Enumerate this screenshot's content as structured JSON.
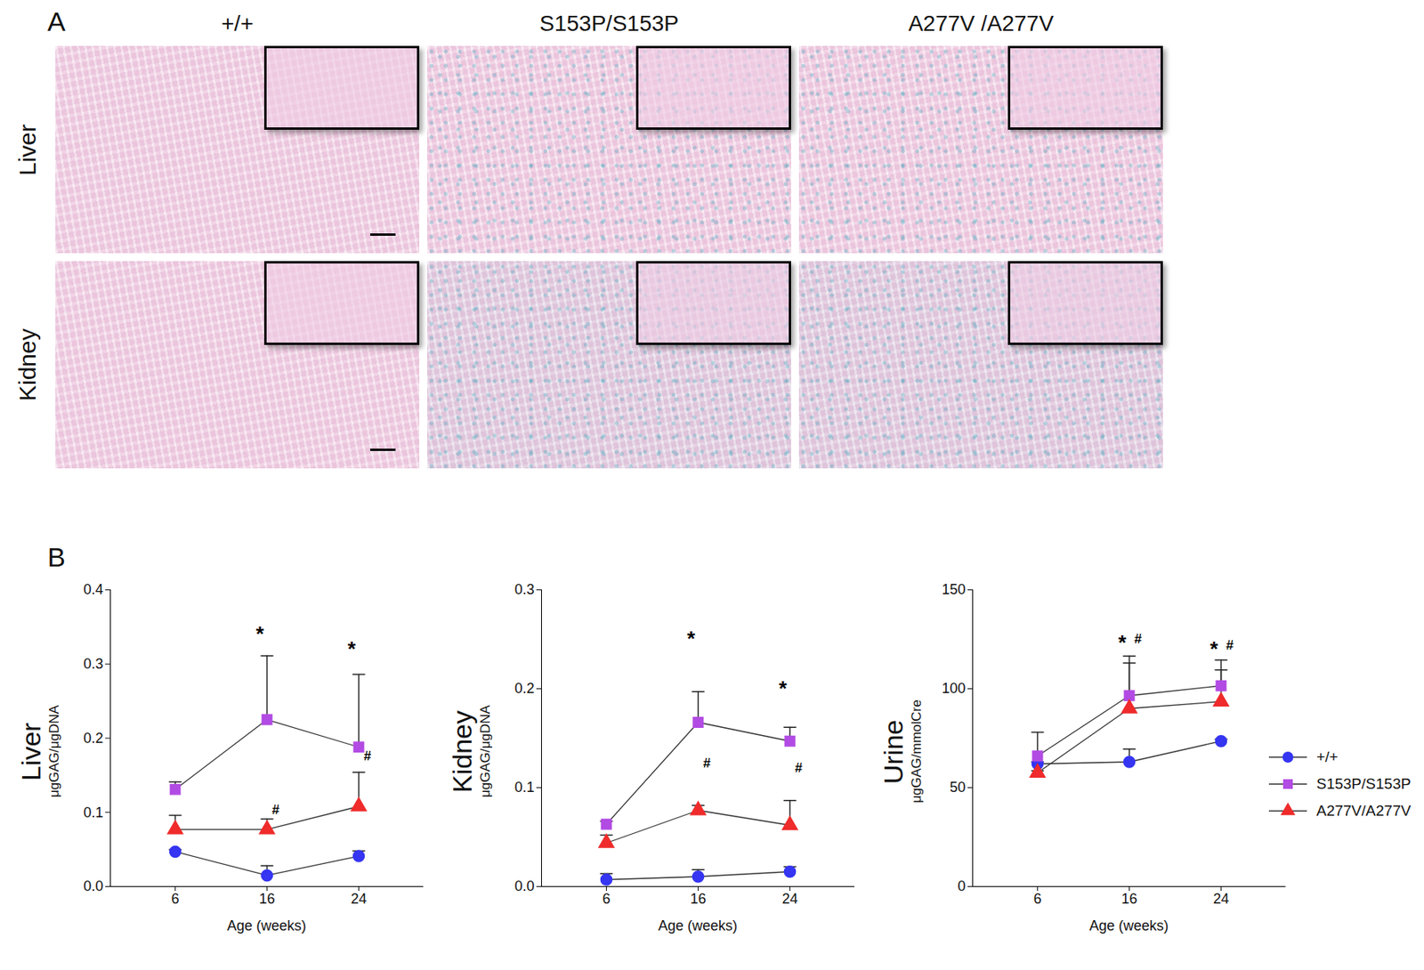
{
  "panel_a": {
    "label": "A",
    "columns": [
      "+/+",
      "S153P/S153P",
      "A277V /A277V"
    ],
    "rows": [
      "Liver",
      "Kidney"
    ]
  },
  "panel_b": {
    "label": "B"
  },
  "chart_data": [
    {
      "type": "line",
      "y_label": "Liver",
      "y_unit": "μgGAG/μgDNA",
      "x_label": "Age (weeks)",
      "categories": [
        "6",
        "16",
        "24"
      ],
      "ylim": [
        0,
        0.4
      ],
      "yticks": [
        {
          "value": 0,
          "label": "0.0"
        },
        0.1,
        0.2,
        0.3,
        0.4
      ],
      "series": [
        {
          "name": "+/+",
          "color": "#3535f2",
          "marker": "circle",
          "values": [
            0.047,
            0.015,
            0.041
          ],
          "errors": [
            0.003,
            0.013,
            0.007
          ]
        },
        {
          "name": "S153P/S153P",
          "color": "#b24be3",
          "marker": "square",
          "values": [
            0.131,
            0.225,
            0.188
          ],
          "errors": [
            0.01,
            0.086,
            0.098
          ]
        },
        {
          "name": "A277V/A277V",
          "color": "#ef2b2b",
          "marker": "triangle",
          "values": [
            0.077,
            0.077,
            0.108
          ],
          "errors": [
            0.019,
            0.014,
            0.046
          ]
        }
      ],
      "annotations": [
        {
          "text": "*",
          "x": "16",
          "y": 0.34
        },
        {
          "text": "*",
          "x": "24",
          "y": 0.32
        },
        {
          "text": "#",
          "x": "16",
          "y": 0.103
        },
        {
          "text": "#",
          "x": "24",
          "y": 0.176
        }
      ]
    },
    {
      "type": "line",
      "y_label": "Kidney",
      "y_unit": "μgGAG/μgDNA",
      "x_label": "Age (weeks)",
      "categories": [
        "6",
        "16",
        "24"
      ],
      "ylim": [
        0,
        0.3
      ],
      "yticks": [
        {
          "value": 0,
          "label": "0.0"
        },
        0.1,
        0.2,
        0.3
      ],
      "series": [
        {
          "name": "+/+",
          "color": "#3535f2",
          "marker": "circle",
          "values": [
            0.007,
            0.01,
            0.015
          ],
          "errors": [
            0.006,
            0.007,
            0.005
          ]
        },
        {
          "name": "S153P/S153P",
          "color": "#b24be3",
          "marker": "square",
          "values": [
            0.063,
            0.166,
            0.147
          ],
          "errors": [
            0.003,
            0.031,
            0.014
          ]
        },
        {
          "name": "A277V/A277V",
          "color": "#ef2b2b",
          "marker": "triangle",
          "values": [
            0.044,
            0.077,
            0.062
          ],
          "errors": [
            0.008,
            0.005,
            0.025
          ]
        }
      ],
      "annotations": [
        {
          "text": "*",
          "x": "16",
          "y": 0.25
        },
        {
          "text": "*",
          "x": "24",
          "y": 0.2
        },
        {
          "text": "#",
          "x": "16",
          "y": 0.125
        },
        {
          "text": "#",
          "x": "24",
          "y": 0.12
        }
      ]
    },
    {
      "type": "line",
      "y_label": "Urine",
      "y_unit": "μgGAG/mmolCre",
      "x_label": "Age (weeks)",
      "categories": [
        "6",
        "16",
        "24"
      ],
      "ylim": [
        0,
        150
      ],
      "yticks": [
        0,
        50,
        100,
        150
      ],
      "legend": "right",
      "series": [
        {
          "name": "+/+",
          "color": "#3535f2",
          "marker": "circle",
          "values": [
            62,
            63,
            73.5
          ],
          "errors": [
            1,
            6.5,
            1
          ]
        },
        {
          "name": "S153P/S153P",
          "color": "#b24be3",
          "marker": "square",
          "values": [
            66,
            96.5,
            101.5
          ],
          "errors": [
            12,
            20,
            13
          ]
        },
        {
          "name": "A277V/A277V",
          "color": "#ef2b2b",
          "marker": "triangle",
          "values": [
            57.5,
            90,
            93.5
          ],
          "errors": [
            1,
            23,
            16
          ]
        }
      ],
      "annotations": [
        {
          "text": "*",
          "x": "16",
          "y": 123
        },
        {
          "text": "#",
          "x": "16",
          "y": 125
        },
        {
          "text": "*",
          "x": "24",
          "y": 120
        },
        {
          "text": "#",
          "x": "24",
          "y": 122
        }
      ]
    }
  ]
}
